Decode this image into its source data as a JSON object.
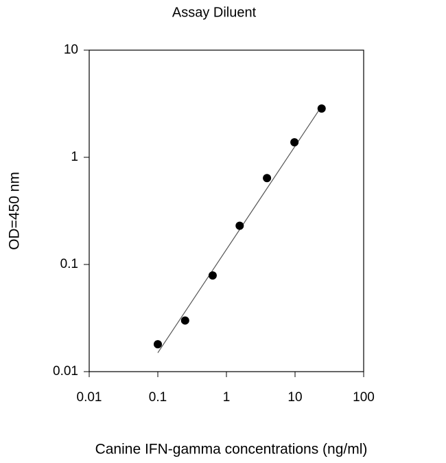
{
  "chart_data": {
    "type": "scatter",
    "title": "Assay Diluent",
    "x_label": "Canine IFN-gamma concentrations (ng/ml)",
    "y_label": "OD=450 nm",
    "x_log": true,
    "y_log": true,
    "xlim": [
      0.01,
      100
    ],
    "ylim": [
      0.01,
      10
    ],
    "xticks": [
      0.01,
      0.1,
      1,
      10,
      100
    ],
    "yticks": [
      0.01,
      0.1,
      1,
      10
    ],
    "color": "#000000",
    "x": [
      0.1,
      0.25,
      0.63,
      1.56,
      3.9,
      9.8,
      24.4
    ],
    "values": [
      0.018,
      0.03,
      0.079,
      0.23,
      0.64,
      1.38,
      2.85
    ],
    "fit": {
      "x": [
        0.1,
        24.4
      ],
      "values": [
        0.015,
        3.0
      ],
      "color": "#555555"
    }
  }
}
